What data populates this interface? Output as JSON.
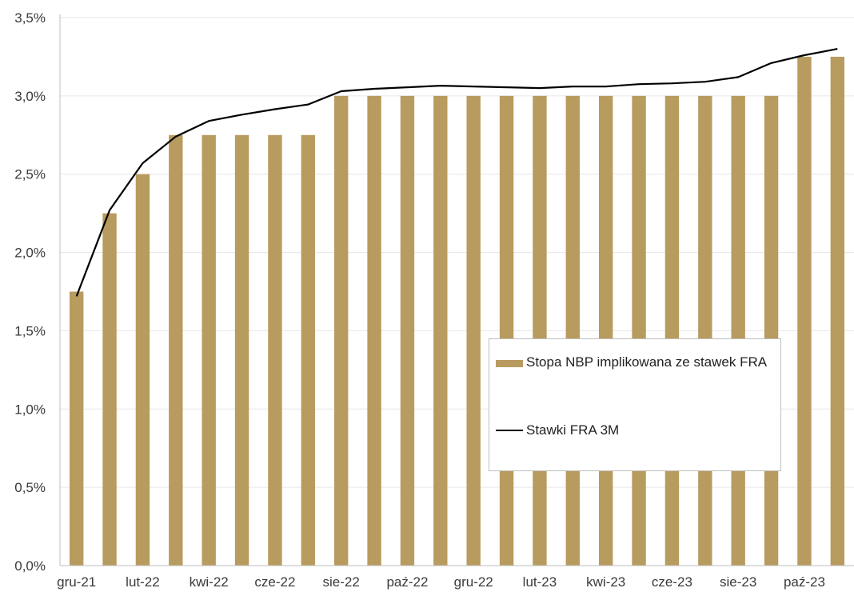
{
  "chart_data": {
    "type": "bar",
    "categories": [
      "gru-21",
      "sty-22",
      "lut-22",
      "mar-22",
      "kwi-22",
      "maj-22",
      "cze-22",
      "lip-22",
      "sie-22",
      "wrz-22",
      "paź-22",
      "lis-22",
      "gru-22",
      "sty-23",
      "lut-23",
      "mar-23",
      "kwi-23",
      "maj-23",
      "cze-23",
      "lip-23",
      "sie-23",
      "wrz-23",
      "paź-23",
      "lis-23"
    ],
    "x_tick_labels": [
      "gru-21",
      "lut-22",
      "kwi-22",
      "cze-22",
      "sie-22",
      "paź-22",
      "gru-22",
      "lut-23",
      "kwi-23",
      "cze-23",
      "sie-23",
      "paź-23"
    ],
    "series": [
      {
        "name": "Stopa NBP implikowana ze stawek FRA",
        "kind": "bar",
        "color": "#b89b5e",
        "values": [
          1.75,
          2.25,
          2.5,
          2.75,
          2.75,
          2.75,
          2.75,
          2.75,
          3.0,
          3.0,
          3.0,
          3.0,
          3.0,
          3.0,
          3.0,
          3.0,
          3.0,
          3.0,
          3.0,
          3.0,
          3.0,
          3.0,
          3.25,
          3.25
        ]
      },
      {
        "name": "Stawki FRA 3M",
        "kind": "line",
        "color": "#000000",
        "values": [
          1.72,
          2.27,
          2.57,
          2.74,
          2.84,
          2.88,
          2.915,
          2.945,
          3.03,
          3.045,
          3.055,
          3.065,
          3.06,
          3.055,
          3.05,
          3.06,
          3.06,
          3.075,
          3.08,
          3.09,
          3.12,
          3.21,
          3.26,
          3.3
        ]
      }
    ],
    "y_tick_labels": [
      "0,0%",
      "0,5%",
      "1,0%",
      "1,5%",
      "2,0%",
      "2,5%",
      "3,0%",
      "3,5%"
    ],
    "ylim": [
      0,
      3.5
    ],
    "grid": true,
    "legend_position": "lower-right"
  }
}
